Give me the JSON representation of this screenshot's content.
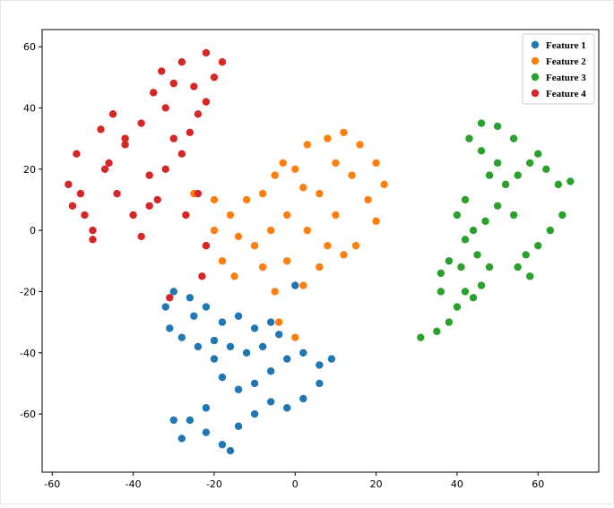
{
  "chart_data": {
    "type": "scatter",
    "xlim": [
      -62.5,
      75
    ],
    "ylim": [
      -79,
      65.6
    ],
    "xticks": [
      -60,
      -40,
      -20,
      0,
      20,
      40,
      60
    ],
    "yticks": [
      -60,
      -40,
      -20,
      0,
      20,
      40,
      60
    ],
    "legend": "upper right",
    "series": [
      {
        "name": "Feature 1",
        "color": "#1f77b4",
        "x": [
          -30,
          -32,
          -31,
          -28,
          -25,
          -22,
          -18,
          -14,
          -10,
          -6,
          -4,
          -8,
          -12,
          -16,
          -20,
          -18,
          -14,
          -10,
          -6,
          -2,
          2,
          6,
          9,
          6,
          2,
          -2,
          -6,
          -10,
          -14,
          -18,
          -16,
          -22,
          -26,
          -30,
          -28,
          -22,
          -24,
          -26,
          0,
          -20
        ],
        "values": [
          -20,
          -25,
          -32,
          -35,
          -28,
          -25,
          -30,
          -28,
          -32,
          -30,
          -34,
          -38,
          -40,
          -38,
          -42,
          -48,
          -52,
          -50,
          -46,
          -42,
          -40,
          -44,
          -42,
          -50,
          -55,
          -58,
          -56,
          -60,
          -64,
          -70,
          -72,
          -66,
          -62,
          -62,
          -68,
          -58,
          -38,
          -22,
          -18,
          -36
        ]
      },
      {
        "name": "Feature 2",
        "color": "#ff7f0e",
        "x": [
          0,
          3,
          8,
          12,
          16,
          20,
          22,
          18,
          14,
          10,
          6,
          2,
          -3,
          -5,
          -8,
          -12,
          -16,
          -20,
          -22,
          -18,
          -15,
          -10,
          -6,
          -2,
          3,
          8,
          12,
          15,
          10,
          6,
          2,
          -2,
          -5,
          -8,
          -14,
          -20,
          -25,
          -4,
          0,
          20
        ],
        "values": [
          20,
          28,
          30,
          32,
          28,
          22,
          15,
          10,
          18,
          22,
          12,
          14,
          22,
          18,
          12,
          10,
          5,
          0,
          -5,
          -10,
          -15,
          -5,
          0,
          5,
          0,
          -5,
          -8,
          -5,
          5,
          -12,
          -18,
          -10,
          -20,
          -12,
          -2,
          10,
          12,
          -30,
          -35,
          3
        ]
      },
      {
        "name": "Feature 3",
        "color": "#2ca02c",
        "x": [
          31,
          35,
          38,
          40,
          42,
          44,
          46,
          48,
          45,
          42,
          40,
          38,
          36,
          41,
          44,
          47,
          50,
          52,
          55,
          58,
          60,
          62,
          65,
          68,
          66,
          63,
          60,
          57,
          55,
          58,
          54,
          50,
          46,
          43,
          46,
          50,
          54,
          48,
          42,
          36
        ],
        "values": [
          -35,
          -33,
          -30,
          -25,
          -20,
          -22,
          -18,
          -12,
          -8,
          -3,
          5,
          -10,
          -20,
          -12,
          0,
          3,
          8,
          15,
          18,
          22,
          25,
          20,
          15,
          16,
          5,
          0,
          -5,
          -8,
          -12,
          -15,
          5,
          22,
          26,
          30,
          35,
          34,
          30,
          18,
          10,
          -14
        ]
      },
      {
        "name": "Feature 4",
        "color": "#d62728",
        "x": [
          -50,
          -52,
          -55,
          -56,
          -54,
          -48,
          -45,
          -42,
          -47,
          -50,
          -53,
          -44,
          -40,
          -38,
          -42,
          -46,
          -36,
          -34,
          -38,
          -32,
          -30,
          -28,
          -33,
          -35,
          -30,
          -26,
          -24,
          -22,
          -20,
          -18,
          -22,
          -25,
          -28,
          -32,
          -36,
          -27,
          -24,
          -22,
          -23,
          -31
        ],
        "values": [
          0,
          5,
          8,
          15,
          25,
          33,
          38,
          30,
          20,
          -3,
          12,
          12,
          5,
          -2,
          28,
          22,
          18,
          10,
          35,
          40,
          48,
          55,
          52,
          45,
          30,
          32,
          38,
          42,
          50,
          55,
          58,
          47,
          25,
          20,
          8,
          5,
          12,
          -5,
          -15,
          -22
        ]
      }
    ]
  }
}
